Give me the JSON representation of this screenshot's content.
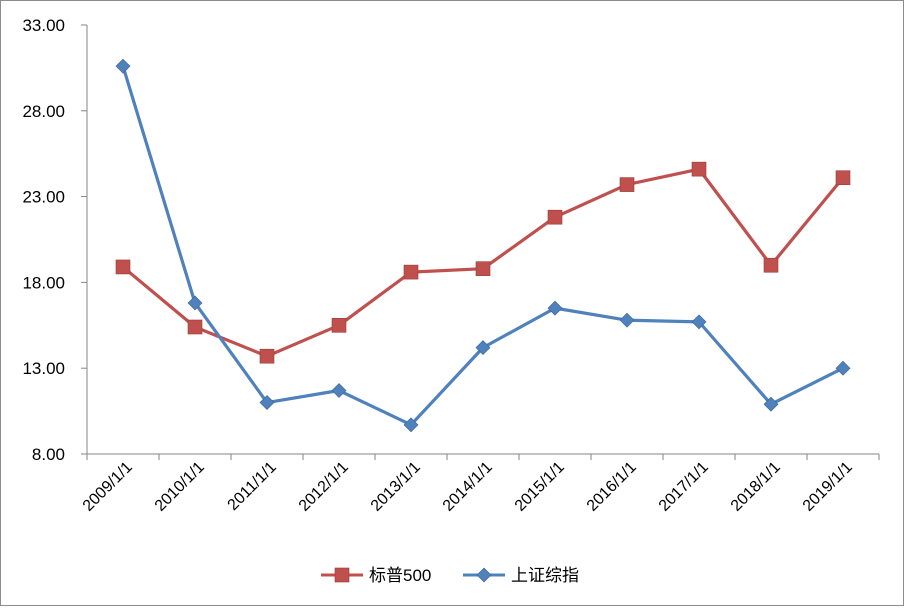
{
  "chart_data": {
    "type": "line",
    "title": "",
    "xlabel": "",
    "ylabel": "",
    "categories": [
      "2009/1/1",
      "2010/1/1",
      "2011/1/1",
      "2012/1/1",
      "2013/1/1",
      "2014/1/1",
      "2015/1/1",
      "2016/1/1",
      "2017/1/1",
      "2018/1/1",
      "2019/1/1"
    ],
    "y_ticks": [
      "8.00",
      "13.00",
      "18.00",
      "23.00",
      "28.00",
      "33.00"
    ],
    "ylim": [
      8,
      33
    ],
    "grid": false,
    "legend_position": "bottom",
    "series": [
      {
        "name": "标普500",
        "color": "#C0504D",
        "marker": "square",
        "values": [
          18.9,
          15.4,
          13.7,
          15.5,
          18.6,
          18.8,
          21.8,
          23.7,
          24.6,
          19.0,
          24.1
        ]
      },
      {
        "name": "上证综指",
        "color": "#4F81BD",
        "marker": "diamond",
        "values": [
          30.6,
          16.8,
          11.0,
          11.7,
          9.7,
          14.2,
          16.5,
          15.8,
          15.7,
          10.9,
          13.0
        ]
      }
    ]
  }
}
